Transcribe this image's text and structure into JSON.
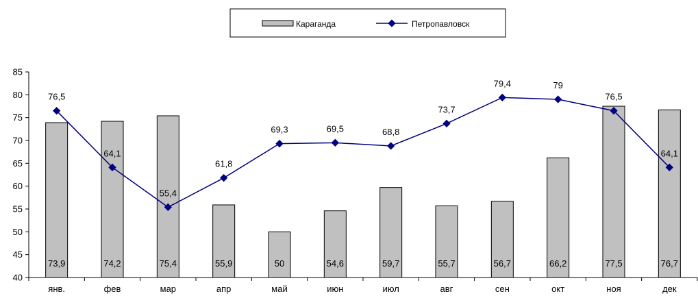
{
  "chart_data": {
    "type": "bar",
    "categories": [
      "янв.",
      "фев",
      "мар",
      "апр",
      "май",
      "июн",
      "июл",
      "авг",
      "сен",
      "окт",
      "ноя",
      "дек"
    ],
    "series": [
      {
        "name": "Караганда",
        "kind": "bar",
        "values": [
          73.9,
          74.2,
          75.4,
          55.9,
          50,
          54.6,
          59.7,
          55.7,
          56.7,
          66.2,
          77.5,
          76.7
        ],
        "labels": [
          "73,9",
          "74,2",
          "75,4",
          "55,9",
          "50",
          "54,6",
          "59,7",
          "55,7",
          "56,7",
          "66,2",
          "77,5",
          "76,7"
        ],
        "color": "#c0c0c0"
      },
      {
        "name": "Петропавловск",
        "kind": "line",
        "values": [
          76.5,
          64.1,
          55.4,
          61.8,
          69.3,
          69.5,
          68.8,
          73.7,
          79.4,
          79,
          76.5,
          64.1
        ],
        "labels": [
          "76,5",
          "64,1",
          "55,4",
          "61,8",
          "69,3",
          "69,5",
          "68,8",
          "73,7",
          "79,4",
          "79",
          "76,5",
          "64,1"
        ],
        "color": "#000080"
      }
    ],
    "ylim": [
      40,
      85
    ],
    "yticks": [
      "40",
      "45",
      "50",
      "55",
      "60",
      "65",
      "70",
      "75",
      "80",
      "85"
    ],
    "grid": false,
    "legend_position": "top"
  }
}
